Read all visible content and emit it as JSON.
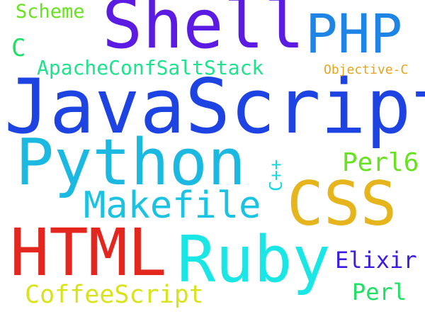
{
  "word_cloud": {
    "words": [
      {
        "text": "JavaScript",
        "color": "#1d44e3"
      },
      {
        "text": "Shell",
        "color": "#5b1be3"
      },
      {
        "text": "PHP",
        "color": "#1e85e6"
      },
      {
        "text": "Python",
        "color": "#1bb9e2"
      },
      {
        "text": "CSS",
        "color": "#e6b41c"
      },
      {
        "text": "HTML",
        "color": "#e3261e"
      },
      {
        "text": "Ruby",
        "color": "#1be6e6"
      },
      {
        "text": "Makefile",
        "color": "#1bc3e3"
      },
      {
        "text": "ApacheConfSaltStack",
        "color": "#1de38d"
      },
      {
        "text": "Scheme",
        "color": "#66e31e"
      },
      {
        "text": "C",
        "color": "#1de064"
      },
      {
        "text": "Objective-C",
        "color": "#e6a51c"
      },
      {
        "text": "Perl6",
        "color": "#66e31e"
      },
      {
        "text": "C++",
        "color": "#1bd6e3"
      },
      {
        "text": "Elixir",
        "color": "#3c1be3"
      },
      {
        "text": "Perl",
        "color": "#1de064"
      },
      {
        "text": "CoffeeScript",
        "color": "#d9e31b"
      }
    ]
  }
}
